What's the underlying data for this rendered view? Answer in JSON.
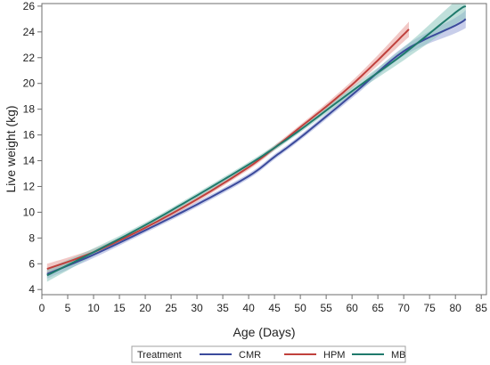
{
  "chart_data": {
    "type": "line",
    "xlabel": "Age (Days)",
    "ylabel": "Live weight (kg)",
    "xlim": [
      0,
      86
    ],
    "ylim": [
      3.6,
      26.2
    ],
    "xticks": [
      "0",
      "5",
      "10",
      "15",
      "20",
      "25",
      "30",
      "35",
      "40",
      "45",
      "50",
      "55",
      "60",
      "65",
      "70",
      "75",
      "80",
      "85"
    ],
    "yticks": [
      "4",
      "6",
      "8",
      "10",
      "12",
      "14",
      "16",
      "18",
      "20",
      "22",
      "24",
      "26"
    ],
    "grid": false,
    "legend_position": "bottom",
    "legend_title": "Treatment",
    "series": [
      {
        "name": "CMR",
        "color": "#3b4a9c",
        "band_color": "#9ba6d9",
        "x": [
          1,
          10,
          20,
          30,
          40,
          45,
          50,
          60,
          70,
          80,
          82
        ],
        "y": [
          5.2,
          6.7,
          8.6,
          10.6,
          12.8,
          14.3,
          15.8,
          19.1,
          22.5,
          24.5,
          25.0
        ],
        "band_halfwidth": [
          0.35,
          0.25,
          0.2,
          0.2,
          0.2,
          0.2,
          0.2,
          0.25,
          0.35,
          0.6,
          0.7
        ]
      },
      {
        "name": "HPM",
        "color": "#c0403c",
        "band_color": "#e89a98",
        "x": [
          1,
          10,
          20,
          30,
          40,
          45,
          50,
          55,
          60,
          65,
          70,
          71
        ],
        "y": [
          5.6,
          6.9,
          8.8,
          11.0,
          13.5,
          15.0,
          16.6,
          18.2,
          19.9,
          21.8,
          23.8,
          24.2
        ],
        "band_halfwidth": [
          0.4,
          0.25,
          0.2,
          0.2,
          0.2,
          0.2,
          0.2,
          0.25,
          0.3,
          0.4,
          0.55,
          0.6
        ]
      },
      {
        "name": "MB",
        "color": "#1f7a6c",
        "band_color": "#8cc7bd",
        "x": [
          1,
          10,
          20,
          30,
          40,
          45,
          50,
          60,
          70,
          80,
          82
        ],
        "y": [
          5.1,
          6.9,
          9.0,
          11.3,
          13.7,
          15.0,
          16.4,
          19.4,
          22.3,
          25.5,
          26.0
        ],
        "band_halfwidth": [
          0.5,
          0.3,
          0.2,
          0.2,
          0.2,
          0.2,
          0.2,
          0.3,
          0.5,
          0.9,
          1.0
        ]
      }
    ]
  }
}
